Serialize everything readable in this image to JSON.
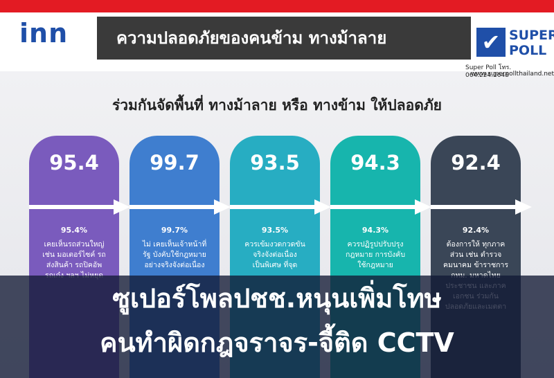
{
  "header": {
    "logo": "inn",
    "banner": "ความปลอดภัยของคนข้าม  ทางม้าลาย",
    "poll_logo_top": "SUPER",
    "poll_logo_bottom": "POLL",
    "contact": "Super Poll โทร. 064.224.2646",
    "website": "www.superpollthailand.net"
  },
  "subtitle": "ร่วมกันจัดพื้นที่ ทางม้าลาย หรือ ทางข้าม ให้ปลอดภัย",
  "cards": [
    {
      "value": 95.4,
      "percent_label": "95.4%",
      "color": "#7a5bbd",
      "lines": [
        "เคยเห็นรถส่วนใหญ่",
        "เช่น มอเตอร์ไซค์ รถ",
        "ส่งสินค้า รถปิคอัพ",
        "รถเก๋ง ฯลฯ ไม่หยุด"
      ]
    },
    {
      "value": 99.7,
      "percent_label": "99.7%",
      "color": "#3f7ecf",
      "lines": [
        "ไม่ เคยเห็นเจ้าหน้าที่",
        "รัฐ บังคับใช้กฎหมาย",
        "อย่างจริงจังต่อเนื่อง"
      ]
    },
    {
      "value": 93.5,
      "percent_label": "93.5%",
      "color": "#27adc2",
      "lines": [
        "ควรเข้มงวดกวดขัน",
        "จริงจังต่อเนื่อง",
        "เป็นพิเศษ ที่จุด"
      ]
    },
    {
      "value": 94.3,
      "percent_label": "94.3%",
      "color": "#17b5ad",
      "lines": [
        "ควรปฏิรูปปรับปรุง",
        "กฎหมาย การบังคับ",
        "ใช้กฎหมาย"
      ]
    },
    {
      "value": 92.4,
      "percent_label": "92.4%",
      "color": "#3a4657",
      "lines": [
        "ต้องการให้ ทุกภาค",
        "ส่วน เช่น ตำรวจ",
        "คมนาคม ข้าราชการ",
        "กทม. มหาดไทย",
        "ประชาชน และภาค",
        "เอกชน ร่วมกัน",
        "ปลอดภัยและเมตตา"
      ]
    }
  ],
  "headline": [
    "ซูเปอร์โพลปชช.หนุนเพิ่มโทษ",
    "คนทำผิดกฎจราจร-จี้ติด CCTV"
  ]
}
